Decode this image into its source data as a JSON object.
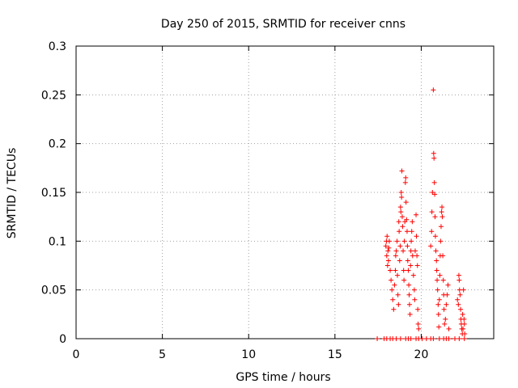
{
  "chart_data": {
    "type": "scatter",
    "title": "Day 250 of 2015, SRMTID for receiver cnns",
    "xlabel": "GPS time / hours",
    "ylabel": "SRMTID / TECUs",
    "xlim": [
      0,
      24.2
    ],
    "ylim": [
      0,
      0.3
    ],
    "xticks": [
      0,
      5,
      10,
      15,
      20
    ],
    "yticks": [
      0,
      0.05,
      0.1,
      0.15,
      0.2,
      0.25,
      0.3
    ],
    "xtick_labels": [
      "0",
      "5",
      "10",
      "15",
      "20"
    ],
    "ytick_labels": [
      "0",
      "0.05",
      "0.1",
      "0.15",
      "0.2",
      "0.25",
      "0.3"
    ],
    "grid": true,
    "marker": "+",
    "color": "#ff0000",
    "series": [
      {
        "name": "cnns",
        "points": [
          [
            17.45,
            0
          ],
          [
            17.85,
            0
          ],
          [
            18.0,
            0
          ],
          [
            18.2,
            0
          ],
          [
            18.35,
            0
          ],
          [
            18.55,
            0
          ],
          [
            18.8,
            0
          ],
          [
            19.1,
            0
          ],
          [
            19.25,
            0
          ],
          [
            19.4,
            0
          ],
          [
            19.7,
            0
          ],
          [
            19.85,
            0
          ],
          [
            20.05,
            0
          ],
          [
            20.3,
            0
          ],
          [
            20.55,
            0
          ],
          [
            20.7,
            0
          ],
          [
            21.05,
            0
          ],
          [
            21.3,
            0
          ],
          [
            21.45,
            0
          ],
          [
            21.6,
            0
          ],
          [
            21.95,
            0
          ],
          [
            22.2,
            0
          ],
          [
            22.5,
            0
          ],
          [
            17.95,
            0.095
          ],
          [
            17.98,
            0.1
          ],
          [
            18.0,
            0.085
          ],
          [
            18.02,
            0.105
          ],
          [
            18.05,
            0.075
          ],
          [
            18.07,
            0.09
          ],
          [
            18.1,
            0.08
          ],
          [
            18.12,
            0.093
          ],
          [
            18.15,
            0.1
          ],
          [
            18.2,
            0.07
          ],
          [
            18.25,
            0.06
          ],
          [
            18.3,
            0.05
          ],
          [
            18.35,
            0.04
          ],
          [
            18.4,
            0.03
          ],
          [
            18.45,
            0.055
          ],
          [
            18.5,
            0.07
          ],
          [
            18.52,
            0.085
          ],
          [
            18.55,
            0.09
          ],
          [
            18.6,
            0.1
          ],
          [
            18.62,
            0.065
          ],
          [
            18.65,
            0.045
          ],
          [
            18.68,
            0.035
          ],
          [
            18.7,
            0.12
          ],
          [
            18.72,
            0.11
          ],
          [
            18.75,
            0.08
          ],
          [
            18.78,
            0.095
          ],
          [
            18.8,
            0.135
          ],
          [
            18.82,
            0.13
          ],
          [
            18.84,
            0.15
          ],
          [
            18.86,
            0.145
          ],
          [
            18.88,
            0.172
          ],
          [
            18.9,
            0.125
          ],
          [
            18.92,
            0.115
          ],
          [
            18.95,
            0.09
          ],
          [
            18.98,
            0.07
          ],
          [
            19.0,
            0.06
          ],
          [
            19.02,
            0.1
          ],
          [
            19.05,
            0.12
          ],
          [
            19.08,
            0.16
          ],
          [
            19.1,
            0.165
          ],
          [
            19.12,
            0.14
          ],
          [
            19.15,
            0.122
          ],
          [
            19.18,
            0.11
          ],
          [
            19.2,
            0.095
          ],
          [
            19.22,
            0.08
          ],
          [
            19.25,
            0.07
          ],
          [
            19.28,
            0.055
          ],
          [
            19.3,
            0.045
          ],
          [
            19.32,
            0.035
          ],
          [
            19.35,
            0.025
          ],
          [
            19.38,
            0.075
          ],
          [
            19.4,
            0.09
          ],
          [
            19.42,
            0.1
          ],
          [
            19.45,
            0.11
          ],
          [
            19.48,
            0.12
          ],
          [
            19.5,
            0.085
          ],
          [
            19.55,
            0.065
          ],
          [
            19.6,
            0.05
          ],
          [
            19.62,
            0.04
          ],
          [
            19.65,
            0.09
          ],
          [
            19.7,
            0.127
          ],
          [
            19.72,
            0.105
          ],
          [
            19.75,
            0.085
          ],
          [
            19.78,
            0.075
          ],
          [
            19.8,
            0.03
          ],
          [
            19.82,
            0.015
          ],
          [
            19.85,
            0.01
          ],
          [
            20.55,
            0.095
          ],
          [
            20.6,
            0.11
          ],
          [
            20.62,
            0.13
          ],
          [
            20.65,
            0.15
          ],
          [
            20.7,
            0.255
          ],
          [
            20.72,
            0.19
          ],
          [
            20.74,
            0.185
          ],
          [
            20.76,
            0.16
          ],
          [
            20.78,
            0.148
          ],
          [
            20.8,
            0.125
          ],
          [
            20.82,
            0.105
          ],
          [
            20.85,
            0.09
          ],
          [
            20.88,
            0.08
          ],
          [
            20.9,
            0.07
          ],
          [
            20.92,
            0.06
          ],
          [
            20.95,
            0.05
          ],
          [
            20.98,
            0.035
          ],
          [
            21.0,
            0.025
          ],
          [
            21.02,
            0.012
          ],
          [
            21.05,
            0.04
          ],
          [
            21.08,
            0.065
          ],
          [
            21.1,
            0.085
          ],
          [
            21.12,
            0.1
          ],
          [
            21.15,
            0.115
          ],
          [
            21.18,
            0.13
          ],
          [
            21.2,
            0.135
          ],
          [
            21.22,
            0.125
          ],
          [
            21.25,
            0.085
          ],
          [
            21.28,
            0.06
          ],
          [
            21.3,
            0.045
          ],
          [
            21.32,
            0.03
          ],
          [
            21.35,
            0.015
          ],
          [
            21.4,
            0.02
          ],
          [
            21.45,
            0.035
          ],
          [
            21.5,
            0.045
          ],
          [
            21.55,
            0.055
          ],
          [
            21.6,
            0.01
          ],
          [
            22.1,
            0.04
          ],
          [
            22.15,
            0.035
          ],
          [
            22.18,
            0.065
          ],
          [
            22.2,
            0.06
          ],
          [
            22.22,
            0.05
          ],
          [
            22.25,
            0.045
          ],
          [
            22.28,
            0.03
          ],
          [
            22.3,
            0.02
          ],
          [
            22.32,
            0.015
          ],
          [
            22.35,
            0.01
          ],
          [
            22.38,
            0.005
          ],
          [
            22.4,
            0.025
          ],
          [
            22.42,
            0.01
          ],
          [
            22.45,
            0.05
          ],
          [
            22.48,
            0.02
          ],
          [
            22.5,
            0.015
          ],
          [
            22.52,
            0.005
          ]
        ]
      }
    ]
  }
}
